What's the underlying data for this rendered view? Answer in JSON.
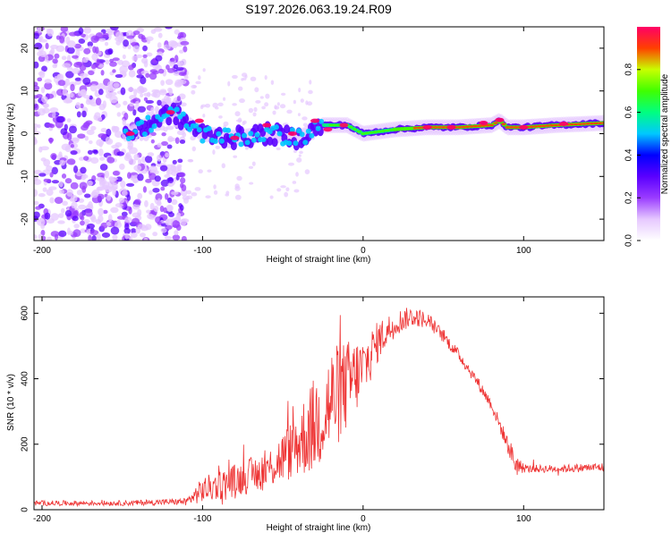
{
  "title": "S197.2026.063.19.24.R09",
  "chart_data": [
    {
      "type": "heatmap",
      "name": "spectrogram",
      "xlabel": "Height of straight line (km)",
      "ylabel": "Frequency (Hz)",
      "xlim": [
        -205,
        150
      ],
      "ylim": [
        -25,
        25
      ],
      "xticks": [
        -200,
        -100,
        0,
        100
      ],
      "xtick_labels": [
        "-200",
        "-100",
        "0",
        "100"
      ],
      "yticks": [
        -20,
        -10,
        0,
        10,
        20
      ],
      "ytick_labels": [
        "-20",
        "-10",
        "0",
        "10",
        "20"
      ],
      "colorbar": {
        "label": "Normalized spectral amplitude",
        "range": [
          0,
          1
        ],
        "ticks": [
          0.0,
          0.2,
          0.4,
          0.6,
          0.8
        ],
        "tick_labels": [
          "0.0",
          "0.2",
          "0.4",
          "0.6",
          "0.8"
        ],
        "colors": [
          "#ffffff",
          "#e6c8ff",
          "#9a3cff",
          "#5a00ff",
          "#0000ff",
          "#00c8ff",
          "#00ff80",
          "#40ff00",
          "#c8ff00",
          "#ff4000",
          "#ff0066"
        ]
      },
      "ridge": {
        "description_points_x": [
          -145,
          -120,
          -100,
          -80,
          -60,
          -40,
          -25,
          -10,
          0,
          20,
          40,
          60,
          80,
          85,
          90,
          100,
          120,
          150
        ],
        "description_points_freq": [
          0,
          5,
          0,
          -1,
          0,
          -1,
          2,
          2,
          0,
          1,
          1.5,
          1.5,
          2,
          3,
          1.5,
          1.5,
          2,
          2.5
        ]
      }
    },
    {
      "type": "line",
      "name": "snr",
      "xlabel": "Height of straight line (km)",
      "ylabel": "SNR (10 * v/v)",
      "xlim": [
        -205,
        150
      ],
      "ylim": [
        0,
        650
      ],
      "xticks": [
        -200,
        -100,
        0,
        100
      ],
      "xtick_labels": [
        "-200",
        "-100",
        "0",
        "100"
      ],
      "yticks": [
        0,
        200,
        400,
        600
      ],
      "ytick_labels": [
        "0",
        "200",
        "400",
        "600"
      ],
      "color": "#ee3333",
      "envelope_x": [
        -205,
        -150,
        -110,
        -100,
        -80,
        -60,
        -45,
        -30,
        -20,
        -10,
        0,
        10,
        20,
        30,
        40,
        50,
        60,
        70,
        80,
        90,
        95,
        100,
        120,
        150
      ],
      "envelope_y": [
        20,
        20,
        25,
        60,
        90,
        120,
        180,
        260,
        330,
        380,
        430,
        520,
        570,
        590,
        580,
        530,
        470,
        400,
        320,
        200,
        140,
        125,
        125,
        130
      ],
      "noise_amplitude_y": [
        8,
        8,
        10,
        40,
        50,
        60,
        90,
        150,
        170,
        140,
        100,
        60,
        40,
        30,
        25,
        20,
        18,
        18,
        18,
        25,
        40,
        12,
        12,
        14
      ]
    }
  ]
}
